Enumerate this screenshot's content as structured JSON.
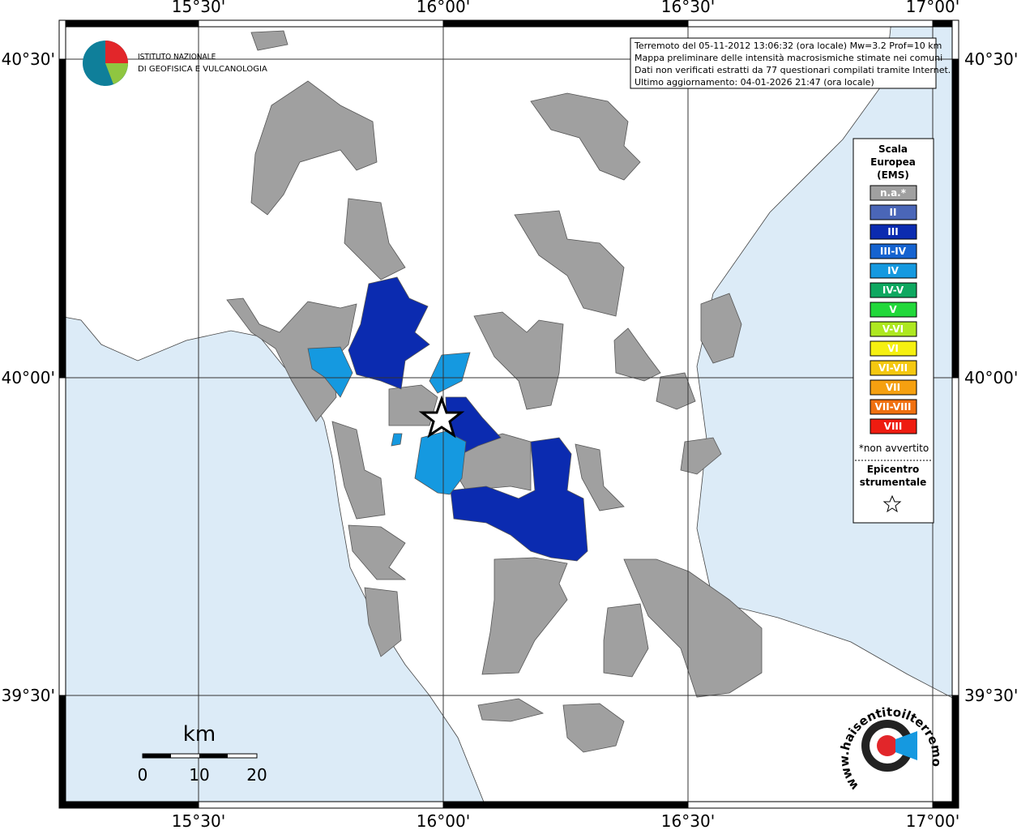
{
  "info": [
    "Terremoto del 05-11-2012 13:06:32 (ora locale) Mw=3.2 Prof=10 km",
    "Mappa preliminare delle intensità macrosismiche stimate nei comuni",
    "Dati non verificati estratti da 77 questionari compilati tramite Internet.",
    "Ultimo aggiornamento: 04-01-2026 21:47 (ora locale)"
  ],
  "logo": [
    "ISTITUTO NAZIONALE",
    "DI GEOFISICA E VULCANOLOGIA"
  ],
  "longitudes": [
    "15°30'",
    "16°00'",
    "16°30'",
    "17°00'"
  ],
  "latitudes": [
    "40°30'",
    "40°00'",
    "39°30'"
  ],
  "legend": {
    "title": [
      "Scala",
      "Europea",
      "(EMS)"
    ],
    "items": [
      {
        "label": "n.a.*",
        "color": "#a0a0a0"
      },
      {
        "label": "II",
        "color": "#4a66b8"
      },
      {
        "label": "III",
        "color": "#0b2bb0"
      },
      {
        "label": "III-IV",
        "color": "#1563d0"
      },
      {
        "label": "IV",
        "color": "#1599e0"
      },
      {
        "label": "IV-V",
        "color": "#0ea860"
      },
      {
        "label": "V",
        "color": "#22d83a"
      },
      {
        "label": "V-VI",
        "color": "#aee820"
      },
      {
        "label": "VI",
        "color": "#f5f010"
      },
      {
        "label": "VI-VII",
        "color": "#f5c810"
      },
      {
        "label": "VII",
        "color": "#f5a010"
      },
      {
        "label": "VII-VIII",
        "color": "#f07010"
      },
      {
        "label": "VIII",
        "color": "#ee1c10"
      }
    ],
    "note": "*non avvertito",
    "epicentre": [
      "Epicentro",
      "strumentale"
    ]
  },
  "scale": {
    "unit": "km",
    "labels": [
      "0",
      "10",
      "20"
    ]
  },
  "watermark": "www.haisentitoilterremoto.it"
}
